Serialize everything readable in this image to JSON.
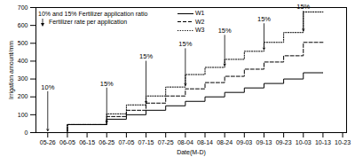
{
  "chart_data": {
    "type": "line",
    "x_label": "Date(M-D)",
    "y_label": "Irrigation amount/mm",
    "x": [
      "05-26",
      "06-05",
      "06-25",
      "07-05",
      "07-15",
      "07-25",
      "08-04",
      "08-14",
      "08-24",
      "09-03",
      "09-13",
      "09-23",
      "10-03",
      "10-13"
    ],
    "series": [
      {
        "name": "W1",
        "color": "#000000",
        "line_style": "solid",
        "values": [
          0,
          45,
          75,
          100,
          125,
          150,
          175,
          200,
          225,
          250,
          275,
          300,
          335,
          335
        ]
      },
      {
        "name": "W2",
        "color": "#000000",
        "line_style": "dashed",
        "values": [
          0,
          45,
          90,
          125,
          165,
          205,
          245,
          280,
          315,
          355,
          395,
          430,
          505,
          505
        ]
      },
      {
        "name": "W3",
        "color": "#000000",
        "line_style": "dotted",
        "values": [
          0,
          45,
          105,
          155,
          205,
          255,
          325,
          365,
          410,
          455,
          505,
          560,
          675,
          675
        ]
      }
    ],
    "xlim": [
      "05-20",
      "10-25"
    ],
    "xticks": [
      "05-26",
      "06-05",
      "06-15",
      "06-25",
      "07-05",
      "07-15",
      "07-25",
      "08-04",
      "08-14",
      "08-24",
      "09-03",
      "09-13",
      "09-23",
      "10-03",
      "10-13",
      "10-23"
    ],
    "ylim": [
      0,
      700
    ],
    "yticks": [
      0,
      100,
      200,
      300,
      400,
      500,
      600,
      700
    ],
    "legend": "top",
    "annotations": [
      {
        "x": "05-26",
        "y": 230,
        "label": "10%"
      },
      {
        "x": "06-25",
        "y": 250,
        "label": "15%"
      },
      {
        "x": "07-15",
        "y": 400,
        "label": "15%"
      },
      {
        "x": "08-04",
        "y": 470,
        "label": "15%"
      },
      {
        "x": "08-24",
        "y": 545,
        "label": "15%"
      },
      {
        "x": "09-13",
        "y": 610,
        "label": "15%"
      },
      {
        "x": "10-03",
        "y": 680,
        "label": "15%"
      }
    ],
    "legend_notes": {
      "ratio_mark": "10% and 15%",
      "ratio_text": "Fertilizer application ratio",
      "arrow_text": "Fertilizer rate per application"
    }
  }
}
